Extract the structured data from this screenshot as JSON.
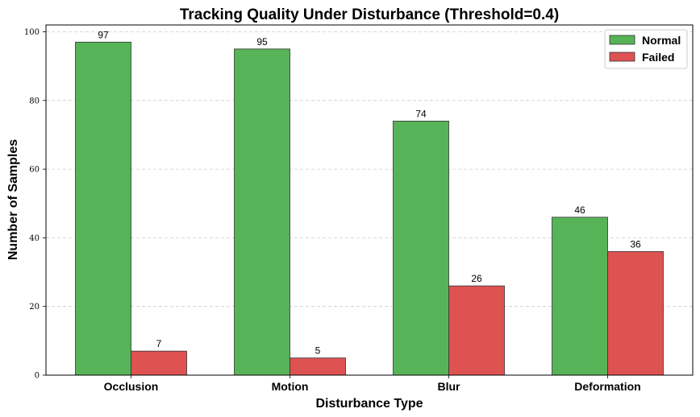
{
  "chart_data": {
    "type": "bar",
    "title": "Tracking Quality Under Disturbance (Threshold=0.4)",
    "xlabel": "Disturbance Type",
    "ylabel": "Number of Samples",
    "categories": [
      "Occlusion",
      "Motion",
      "Blur",
      "Deformation"
    ],
    "series": [
      {
        "name": "Normal",
        "values": [
          97,
          95,
          74,
          46
        ],
        "color": "#57b357"
      },
      {
        "name": "Failed",
        "values": [
          7,
          5,
          26,
          36
        ],
        "color": "#de5252"
      }
    ],
    "ylim": [
      0,
      102
    ],
    "yticks": [
      0,
      20,
      40,
      60,
      80,
      100
    ],
    "grid": true,
    "legend_position": "top-right"
  }
}
